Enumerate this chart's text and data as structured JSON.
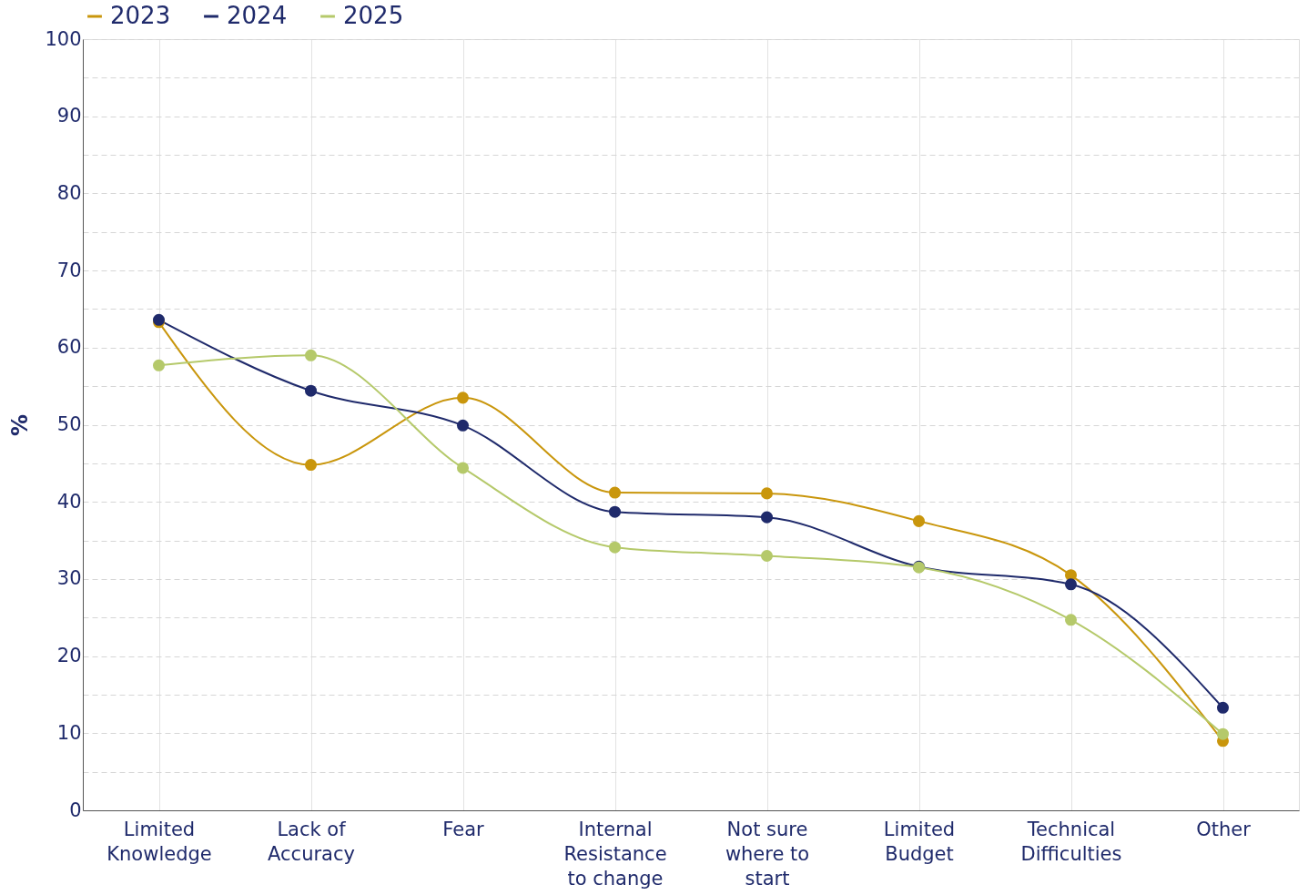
{
  "chart_data": {
    "type": "line",
    "ylabel": "%",
    "categories": [
      "Limited Knowledge",
      "Lack of Accuracy",
      "Fear",
      "Internal Resistance to change",
      "Not sure where to start",
      "Limited Budget",
      "Technical Difficulties",
      "Other"
    ],
    "series": [
      {
        "name": "2023",
        "color": "#c9960c",
        "values": [
          63.3,
          44.8,
          53.5,
          41.2,
          41.1,
          37.5,
          30.5,
          9.0
        ]
      },
      {
        "name": "2024",
        "color": "#1f2a6b",
        "values": [
          63.6,
          54.4,
          49.9,
          38.7,
          38.0,
          31.6,
          29.3,
          13.3
        ]
      },
      {
        "name": "2025",
        "color": "#b5c96a",
        "values": [
          57.7,
          59.0,
          44.4,
          34.1,
          33.0,
          31.5,
          24.7,
          9.9
        ]
      }
    ],
    "ylim": [
      0,
      100
    ],
    "yticks": [
      0,
      {
        "value": 5,
        "label": null
      },
      10,
      {
        "value": 15,
        "label": null
      },
      20,
      {
        "value": 25,
        "label": null
      },
      30,
      {
        "value": 35,
        "label": null
      },
      40,
      {
        "value": 45,
        "label": null
      },
      50,
      {
        "value": 55,
        "label": null
      },
      60,
      {
        "value": 65,
        "label": null
      },
      70,
      {
        "value": 75,
        "label": null
      },
      80,
      {
        "value": 85,
        "label": null
      },
      90,
      {
        "value": 95,
        "label": null
      },
      100
    ],
    "grid": true,
    "legend": "top left",
    "marker": "circle",
    "line_style": "solid"
  }
}
